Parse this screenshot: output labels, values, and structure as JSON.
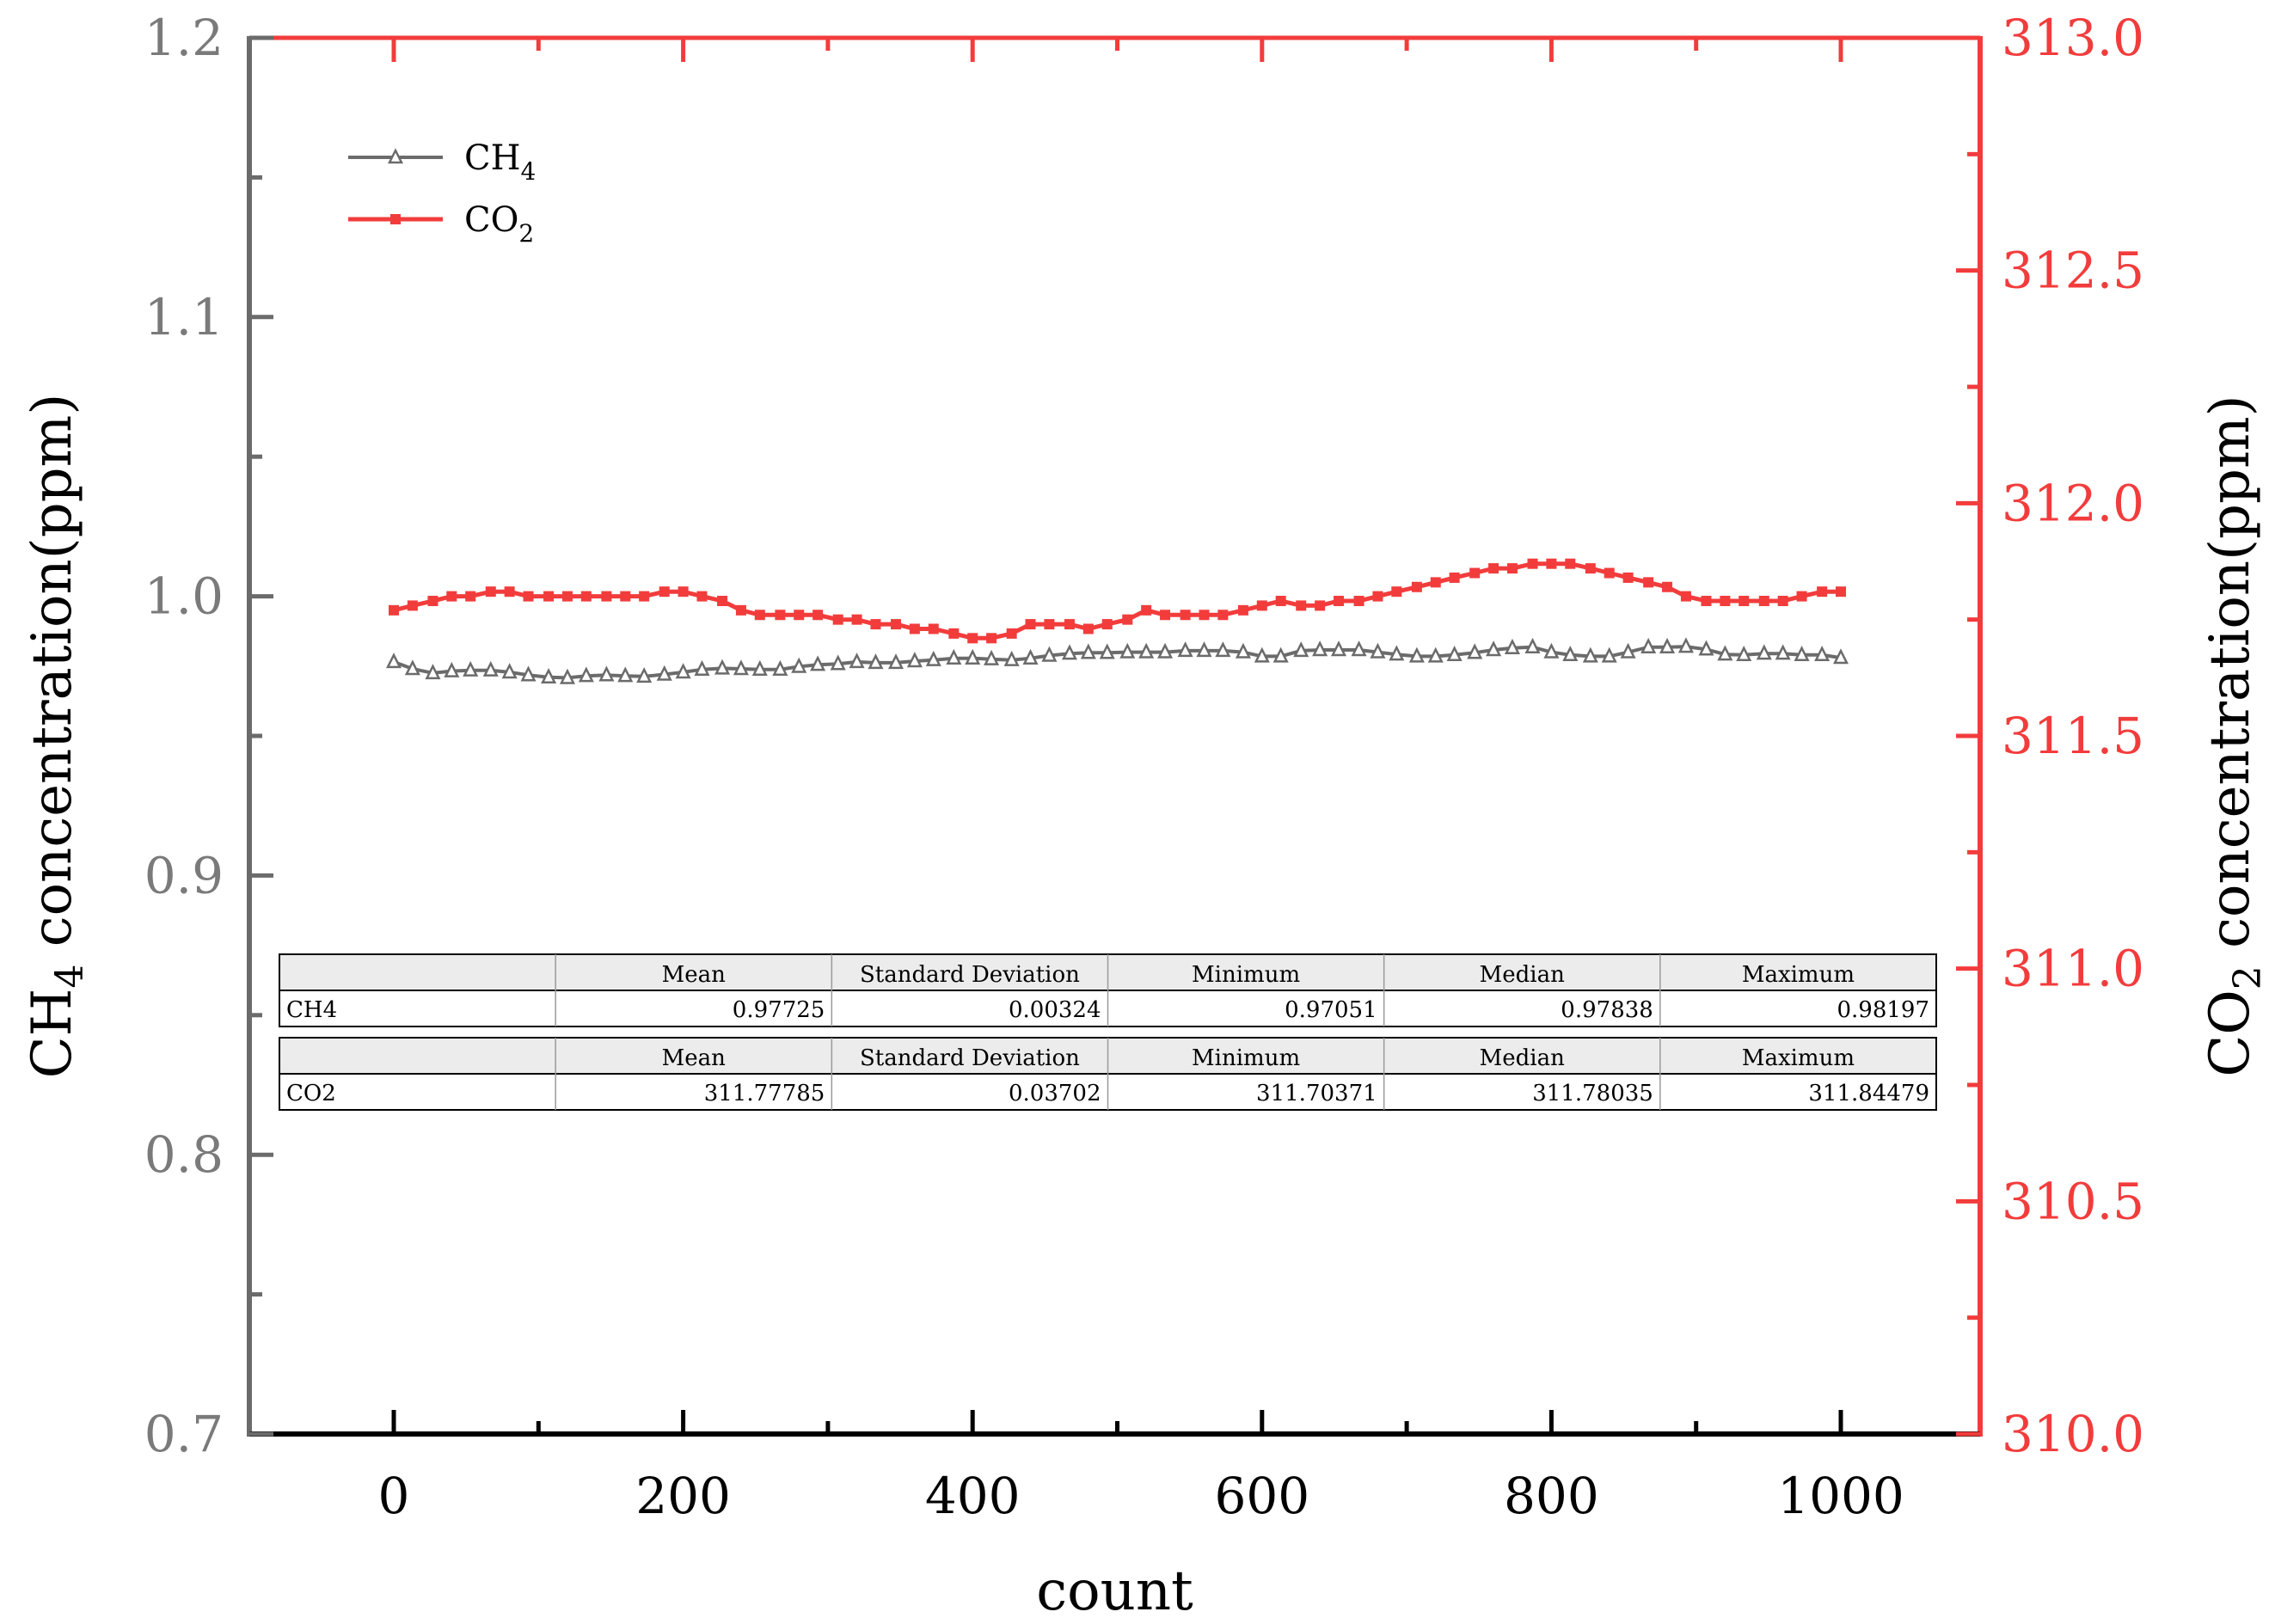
{
  "chart_data": {
    "type": "line",
    "xlabel": "count",
    "ylabel_left": {
      "base": "CH",
      "sub": "4",
      "rest": " concentration(ppm)"
    },
    "ylabel_right": {
      "base": "CO",
      "sub": "2",
      "rest": " concentration(ppm)"
    },
    "xlim": [
      -100,
      1085
    ],
    "ylim_left": [
      0.7,
      1.2
    ],
    "ylim_right": [
      310.0,
      313.0
    ],
    "x_ticks": [
      "0",
      "200",
      "400",
      "600",
      "800",
      "1000"
    ],
    "y_left_ticks": [
      "0.7",
      "0.8",
      "0.9",
      "1.0",
      "1.1",
      "1.2"
    ],
    "y_right_ticks": [
      "310.0",
      "310.5",
      "311.0",
      "311.5",
      "312.0",
      "312.5",
      "313.0"
    ],
    "legend_position": "top-left",
    "colors": {
      "ch4": "#6b6b6b",
      "co2": "#f23c3c",
      "left_axis": "#6b6b6b",
      "right_axis": "#f23c3c"
    },
    "x": [
      0,
      13,
      27,
      40,
      53,
      67,
      80,
      93,
      107,
      120,
      133,
      147,
      160,
      173,
      187,
      200,
      213,
      227,
      240,
      253,
      267,
      280,
      293,
      307,
      320,
      333,
      347,
      360,
      373,
      387,
      400,
      413,
      427,
      440,
      453,
      467,
      480,
      493,
      507,
      520,
      533,
      547,
      560,
      573,
      587,
      600,
      613,
      627,
      640,
      653,
      667,
      680,
      693,
      707,
      720,
      733,
      747,
      760,
      773,
      787,
      800,
      813,
      827,
      840,
      853,
      867,
      880,
      893,
      907,
      920,
      933,
      947,
      960,
      973,
      987,
      1000
    ],
    "series": [
      {
        "name": {
          "base": "CH",
          "sub": "4"
        },
        "axis": "left",
        "marker": "triangle",
        "values": [
          0.9765,
          0.974,
          0.9725,
          0.9732,
          0.9735,
          0.9735,
          0.9728,
          0.9718,
          0.971,
          0.9708,
          0.9715,
          0.9718,
          0.9715,
          0.9713,
          0.972,
          0.9728,
          0.9738,
          0.9742,
          0.974,
          0.9738,
          0.9738,
          0.9748,
          0.9755,
          0.9758,
          0.9765,
          0.9762,
          0.9762,
          0.9768,
          0.9772,
          0.9778,
          0.9778,
          0.9775,
          0.9772,
          0.9778,
          0.9788,
          0.9795,
          0.9798,
          0.9798,
          0.98,
          0.98,
          0.98,
          0.9805,
          0.9805,
          0.9805,
          0.98,
          0.9785,
          0.9785,
          0.9805,
          0.9808,
          0.9808,
          0.9808,
          0.98,
          0.9792,
          0.9785,
          0.9785,
          0.979,
          0.9798,
          0.9808,
          0.9815,
          0.9818,
          0.98,
          0.979,
          0.9785,
          0.9785,
          0.98,
          0.9818,
          0.9818,
          0.982,
          0.981,
          0.9792,
          0.979,
          0.9795,
          0.9795,
          0.979,
          0.979,
          0.978
        ]
      },
      {
        "name": {
          "base": "CO",
          "sub": "2"
        },
        "axis": "right",
        "marker": "square",
        "values": [
          311.77,
          311.78,
          311.79,
          311.8,
          311.8,
          311.81,
          311.81,
          311.8,
          311.8,
          311.8,
          311.8,
          311.8,
          311.8,
          311.8,
          311.81,
          311.81,
          311.8,
          311.79,
          311.77,
          311.76,
          311.76,
          311.76,
          311.76,
          311.75,
          311.75,
          311.74,
          311.74,
          311.73,
          311.73,
          311.72,
          311.71,
          311.71,
          311.72,
          311.74,
          311.74,
          311.74,
          311.73,
          311.74,
          311.75,
          311.77,
          311.76,
          311.76,
          311.76,
          311.76,
          311.77,
          311.78,
          311.79,
          311.78,
          311.78,
          311.79,
          311.79,
          311.8,
          311.81,
          311.82,
          311.83,
          311.84,
          311.85,
          311.86,
          311.86,
          311.87,
          311.87,
          311.87,
          311.86,
          311.85,
          311.84,
          311.83,
          311.82,
          311.8,
          311.79,
          311.79,
          311.79,
          311.79,
          311.79,
          311.8,
          311.81,
          311.81
        ]
      }
    ],
    "stats_table": {
      "headers": [
        "",
        "Mean",
        "Standard Deviation",
        "Minimum",
        "Median",
        "Maximum"
      ],
      "rows": [
        [
          "CH4",
          "0.97725",
          "0.00324",
          "0.97051",
          "0.97838",
          "0.98197"
        ],
        [
          "CO2",
          "311.77785",
          "0.03702",
          "311.70371",
          "311.78035",
          "311.84479"
        ]
      ]
    }
  }
}
